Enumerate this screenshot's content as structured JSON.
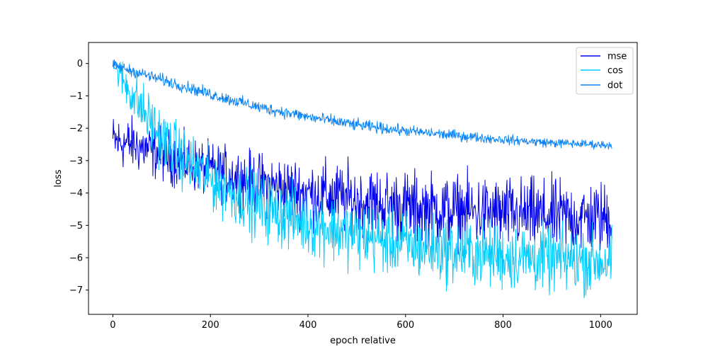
{
  "chart_data": {
    "type": "line",
    "xlabel": "epoch relative",
    "ylabel": "loss",
    "xlim": [
      -50,
      1075
    ],
    "ylim": [
      -7.75,
      0.65
    ],
    "x_ticks": [
      0,
      200,
      400,
      600,
      800,
      1000
    ],
    "y_ticks": [
      0,
      -1,
      -2,
      -3,
      -4,
      -5,
      -6,
      -7
    ],
    "grid": false,
    "legend_position": "top-right",
    "n_points": 1024,
    "series": [
      {
        "name": "mse",
        "color": "#0000ee",
        "x_start": 0,
        "x_end": 1023,
        "x_at": [
          0,
          40,
          100,
          200,
          300,
          400,
          500,
          600,
          700,
          800,
          900,
          1023
        ],
        "trend": [
          -2.4,
          -2.5,
          -2.8,
          -3.3,
          -3.7,
          -4.0,
          -4.25,
          -4.45,
          -4.55,
          -4.65,
          -4.72,
          -4.8
        ],
        "noise": [
          0.4,
          0.4,
          0.4,
          0.4,
          0.45,
          0.5,
          0.55,
          0.55,
          0.55,
          0.55,
          0.55,
          0.55
        ]
      },
      {
        "name": "cos",
        "color": "#00ccff",
        "x_start": 0,
        "x_end": 1023,
        "x_at": [
          0,
          20,
          50,
          100,
          150,
          200,
          300,
          400,
          500,
          600,
          700,
          800,
          900,
          1023
        ],
        "trend": [
          0.0,
          -0.5,
          -1.2,
          -2.3,
          -3.0,
          -3.6,
          -4.4,
          -4.9,
          -5.3,
          -5.6,
          -5.8,
          -5.95,
          -6.05,
          -6.1
        ],
        "noise": [
          0.15,
          0.3,
          0.4,
          0.45,
          0.45,
          0.45,
          0.5,
          0.5,
          0.5,
          0.5,
          0.5,
          0.5,
          0.5,
          0.5
        ]
      },
      {
        "name": "dot",
        "color": "#0a84f5",
        "x_start": 0,
        "x_end": 1023,
        "x_at": [
          0,
          100,
          200,
          300,
          400,
          500,
          600,
          700,
          800,
          900,
          1023
        ],
        "trend": [
          -0.05,
          -0.5,
          -0.95,
          -1.35,
          -1.65,
          -1.9,
          -2.08,
          -2.22,
          -2.35,
          -2.45,
          -2.52
        ],
        "noise": [
          0.08,
          0.09,
          0.09,
          0.09,
          0.09,
          0.09,
          0.08,
          0.08,
          0.07,
          0.07,
          0.06
        ]
      }
    ]
  }
}
